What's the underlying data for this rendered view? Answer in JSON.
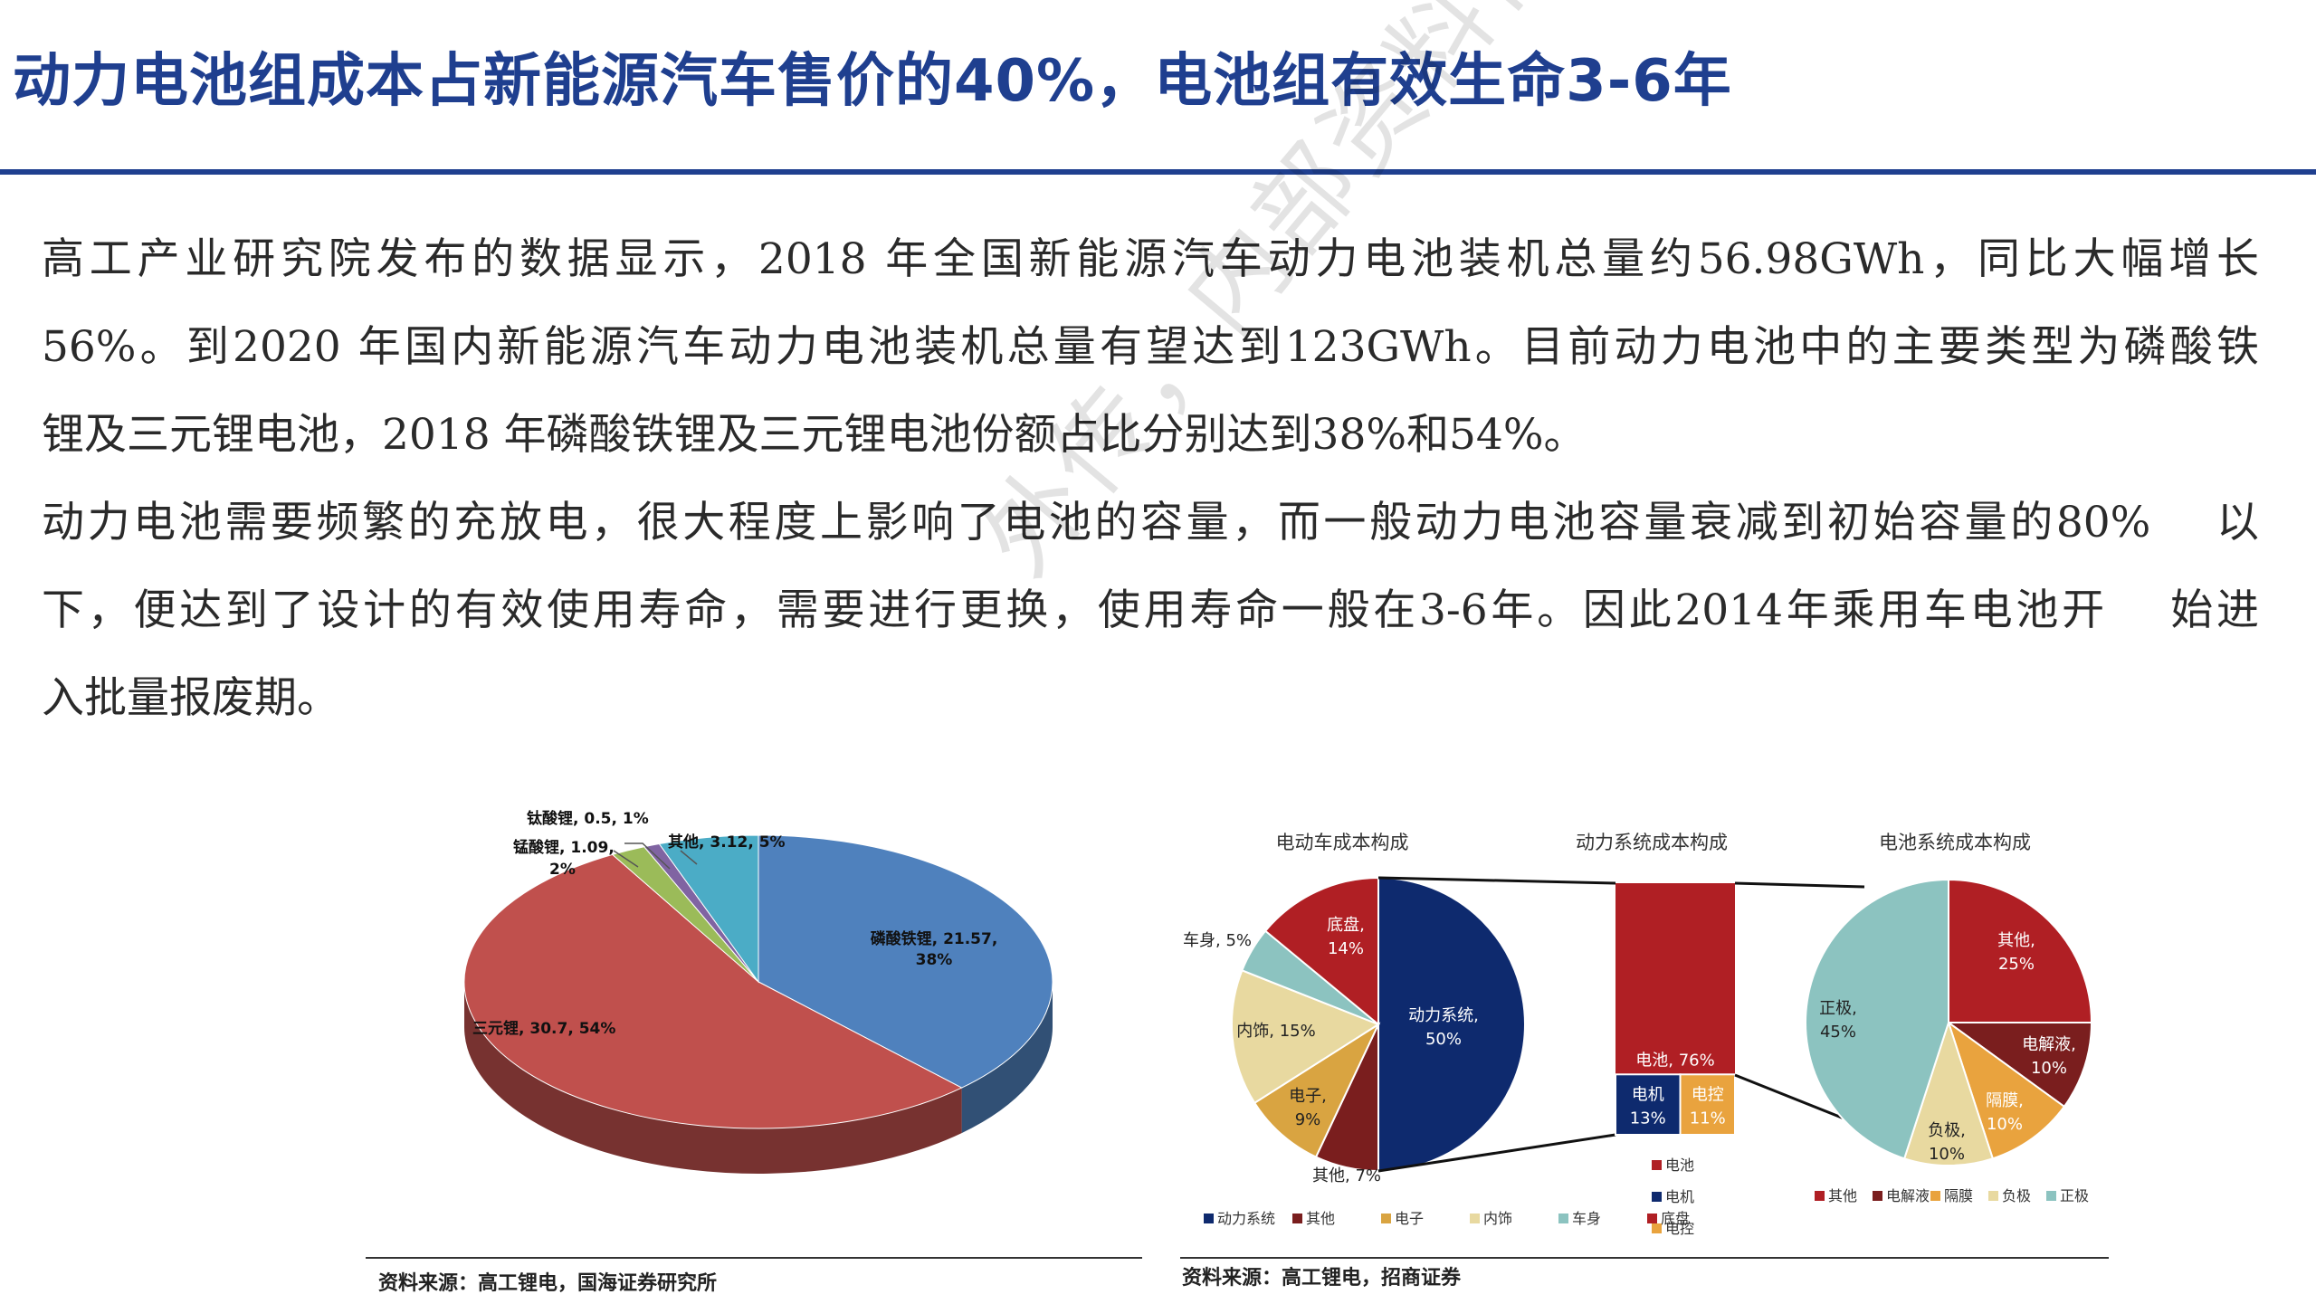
{
  "title": "动力电池组成本占新能源汽车售价的40%，电池组有效生命3-6年",
  "paragraph1": {
    "line1": "高工产业研究院发布的数据显示，2018 年全国新能源汽车动力电池装机总量约56.98GWh，同比大幅增长",
    "line2": "56%。到2020 年国内新能源汽车动力电池装机总量有望达到123GWh。目前动力电池中的主要类型为磷酸铁",
    "line3": "锂及三元锂电池，2018 年磷酸铁锂及三元锂电池份额占比分别达到38%和54%。"
  },
  "paragraph2": {
    "line1": "动力电池需要频繁的充放电，很大程度上影响了电池的容量，而一般动力电池容量衰减到初始容量的80%　 以",
    "line2": "下，便达到了设计的有效使用寿命，需要进行更换，使用寿命一般在3-6年。因此2014年乘用车电池开　 始进",
    "line3": "入批量报废期。"
  },
  "watermark": "外传，内部资料供参考",
  "chart_data": [
    {
      "type": "pie",
      "categories": [
        "磷酸铁锂",
        "三元锂",
        "锰酸锂",
        "钛酸锂",
        "其他"
      ],
      "values": [
        21.57,
        30.7,
        1.09,
        0.5,
        3.12
      ],
      "percents": [
        38,
        54,
        2,
        1,
        5
      ],
      "labels": [
        "磷酸铁锂, 21.57,",
        "三元锂, 30.7, 54%",
        "锰酸锂, 1.09,",
        "钛酸锂, 0.5, 1%",
        "其他, 3.12, 5%"
      ],
      "label_lines2": [
        "38%",
        "",
        "2%",
        "",
        ""
      ],
      "colors": [
        "#4f81bd",
        "#c0504d",
        "#9bbb59",
        "#8064a2",
        "#4bacc6"
      ],
      "source": "资料来源：高工锂电，国海证券研究所"
    },
    {
      "type": "pie",
      "title": "电动车成本构成",
      "categories": [
        "动力系统",
        "其他",
        "电子",
        "内饰",
        "车身",
        "底盘"
      ],
      "values": [
        50,
        7,
        9,
        15,
        5,
        14
      ],
      "colors": [
        "#0e2a6e",
        "#7a1e1e",
        "#d9a441",
        "#e8d9a0",
        "#8cc3c0",
        "#b01f24"
      ],
      "labels": [
        "动力系统,",
        "其他, 7%",
        "电子,",
        "内饰, 15%",
        "车身, 5%",
        "底盘,"
      ],
      "label_lines2": [
        "50%",
        "",
        "9%",
        "",
        "",
        "14%"
      ],
      "legend": [
        "动力系统",
        "其他",
        "电子",
        "内饰",
        "车身",
        "底盘"
      ]
    },
    {
      "type": "bar",
      "title": "动力系统成本构成",
      "categories": [
        "电池",
        "电机",
        "电控"
      ],
      "values": [
        76,
        13,
        11
      ],
      "colors": [
        "#b01f24",
        "#0e2a6e",
        "#e9a33e"
      ],
      "labels": [
        "电池, 76%",
        "电机",
        "电控"
      ],
      "label_lines2": [
        "",
        "13%",
        "11%"
      ],
      "legend": [
        "电池",
        "电机",
        "电控"
      ]
    },
    {
      "type": "pie",
      "title": "电池系统成本构成",
      "categories": [
        "其他",
        "电解液",
        "隔膜",
        "负极",
        "正极"
      ],
      "values": [
        25,
        10,
        10,
        10,
        45
      ],
      "colors": [
        "#b01f24",
        "#7a1e1e",
        "#e9a33e",
        "#e8d9a0",
        "#8cc3c0"
      ],
      "labels": [
        "其他,",
        "电解液,",
        "隔膜,",
        "负极,",
        "正极,"
      ],
      "label_lines2": [
        "25%",
        "10%",
        "10%",
        "10%",
        "45%"
      ],
      "legend": [
        "其他",
        "电解液",
        "隔膜",
        "负极",
        "正极"
      ],
      "source": "资料来源：高工锂电，招商证券"
    }
  ]
}
